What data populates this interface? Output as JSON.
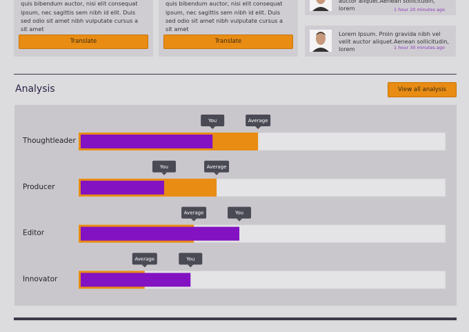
{
  "cards": [
    {
      "text": "auctor aliquet.Aenean sollicitudin, lorem quis bibendum auctor, nisi elit consequat ipsum, nec sagittis sem nibh id elit. Duis sed odio sit amet nibh vulputate cursus a sit amet",
      "button": "Translate"
    },
    {
      "text": "auctor aliquet.Aenean sollicitudin, lorem quis bibendum auctor, nisi elit consequat ipsum, nec sagittis sem nibh id elit. Duis sed odio sit amet nibh vulputate cursus a sit amet",
      "button": "Translate"
    }
  ],
  "comments": [
    {
      "text": "auctor aliquet.Aenean sollicitudin, lorem",
      "time": "1 hour 20 minutes ago"
    },
    {
      "text": "Lorem Ipsum. Proin gravida nibh vel velit auctor aliquet.Aenean sollicitudin, lorem",
      "time": "1 hour 30 minutes ago"
    }
  ],
  "section": {
    "title": "Analysis",
    "button": "View all analysis"
  },
  "chart_data": {
    "type": "bar",
    "orientation": "horizontal",
    "categories": [
      "Thoughtleader",
      "Producer",
      "Editor",
      "Innovator"
    ],
    "series": [
      {
        "name": "You",
        "color": "#8212c2",
        "values": [
          36.5,
          23.3,
          43.8,
          30.5
        ]
      },
      {
        "name": "Average",
        "color": "#e88c14",
        "values": [
          48.9,
          37.6,
          31.4,
          18.0
        ]
      }
    ],
    "xlim": [
      0,
      100
    ]
  }
}
